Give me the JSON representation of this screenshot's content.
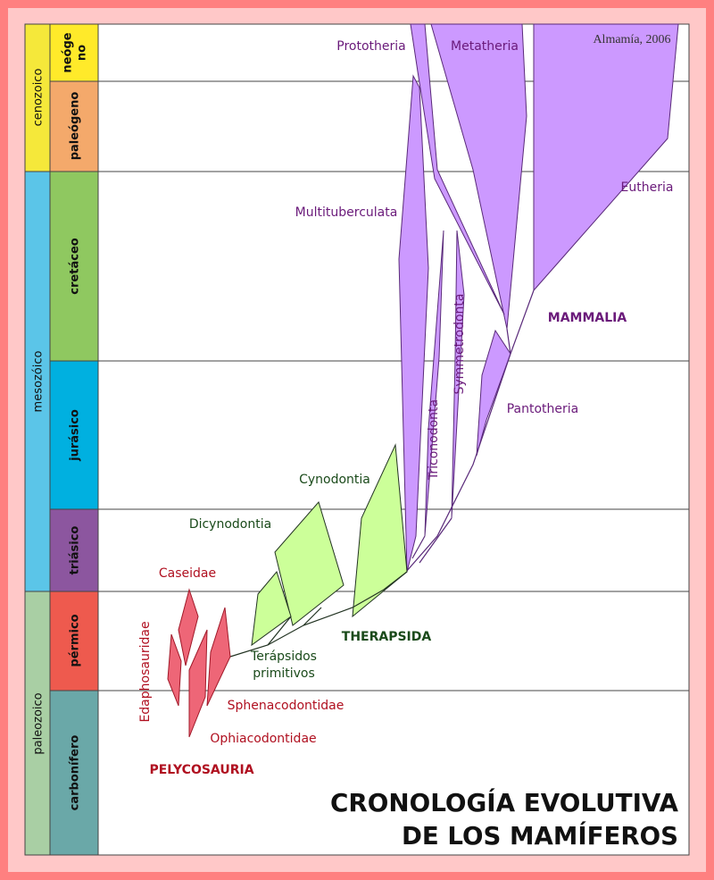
{
  "eras": [
    "cenozoico",
    "mesozóico",
    "paleozoico"
  ],
  "periods": {
    "neogeno": [
      "neóge",
      "no"
    ],
    "others": [
      "paleógeno",
      "cretáceo",
      "jurásico",
      "triásico",
      "pérmico",
      "carbonífero"
    ]
  },
  "credit": "Almamía, 2006",
  "taxa": {
    "prototheria": "Prototheria",
    "metatheria": "Metatheria",
    "eutheria": "Eutheria",
    "multituberculata": "Multituberculata",
    "mammalia": "MAMMALIA",
    "triconodonta": "Triconodonta",
    "symmetrodonta": "Symmetrodonta",
    "pantotheria": "Pantotheria",
    "cynodontia": "Cynodontia",
    "dicynodontia": "Dicynodontia",
    "caseidae": "Caseidae",
    "therapsida": "THERAPSIDA",
    "terapsidos": [
      "Terápsidos",
      "primitivos"
    ],
    "edaphosauridae": "Edaphosauridae",
    "sphenacodontidae": "Sphenacodontidae",
    "ophiacodontidae": "Ophiacodontidae",
    "pelycosauria": "PELYCOSAURIA"
  },
  "title": [
    "CRONOLOGÍA EVOLUTIVA",
    "DE LOS MAMÍFEROS"
  ]
}
